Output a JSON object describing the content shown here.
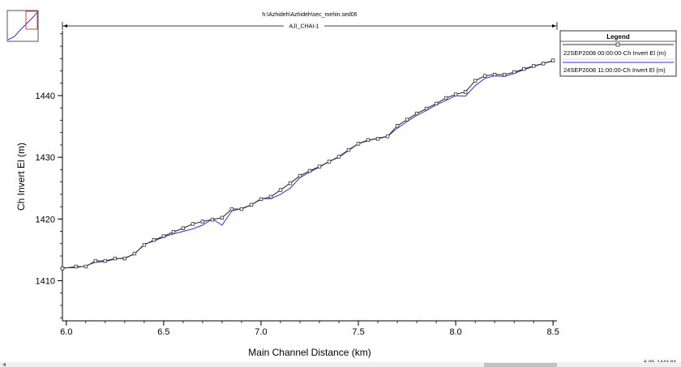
{
  "header": {
    "file_path": "h:\\Azhideh\\Azhideh\\sec_mehin.sed06",
    "reach_name": "AJI_CHAI-1"
  },
  "legend": {
    "title": "Legend",
    "entries": [
      {
        "label": "22SEP2008 00:00:00-Ch Invert El (m)",
        "color": "#333333",
        "marker": "square"
      },
      {
        "label": "24SEP2008 11:00:00-Ch Invert El (m)",
        "color": "#3333cc",
        "marker": "none"
      }
    ]
  },
  "cursor_readout": "6.09, 1444.84",
  "colors": {
    "series1": "#333333",
    "series2": "#3333cc",
    "axis": "#000000"
  },
  "chart_data": {
    "type": "line",
    "title": "",
    "xlabel": "Main Channel Distance (km)",
    "ylabel": "Ch Invert El (m)",
    "xlim": [
      5.98,
      8.52
    ],
    "ylim": [
      1403.5,
      1450.5
    ],
    "xticks": [
      "6.0",
      "6.5",
      "7.0",
      "7.5",
      "8.0",
      "8.5"
    ],
    "xtick_values": [
      6.0,
      6.5,
      7.0,
      7.5,
      8.0,
      8.5
    ],
    "yticks": [
      "1410",
      "1420",
      "1430",
      "1440"
    ],
    "ytick_values": [
      1410,
      1420,
      1430,
      1440
    ],
    "grid": false,
    "legend_position": "top-right",
    "series": [
      {
        "name": "22SEP2008 00:00:00-Ch Invert El (m)",
        "marker": "square",
        "x": [
          5.98,
          6.05,
          6.1,
          6.15,
          6.2,
          6.25,
          6.3,
          6.35,
          6.4,
          6.45,
          6.5,
          6.55,
          6.6,
          6.65,
          6.7,
          6.75,
          6.8,
          6.85,
          6.9,
          6.95,
          7.0,
          7.05,
          7.1,
          7.15,
          7.2,
          7.25,
          7.3,
          7.35,
          7.4,
          7.45,
          7.5,
          7.55,
          7.6,
          7.65,
          7.7,
          7.75,
          7.8,
          7.85,
          7.9,
          7.95,
          8.0,
          8.05,
          8.1,
          8.15,
          8.2,
          8.25,
          8.3,
          8.35,
          8.4,
          8.45,
          8.5
        ],
        "y": [
          1412.0,
          1412.3,
          1412.3,
          1413.2,
          1413.2,
          1413.6,
          1413.6,
          1414.4,
          1415.8,
          1416.6,
          1417.2,
          1417.9,
          1418.5,
          1419.2,
          1419.6,
          1419.9,
          1420.2,
          1421.6,
          1421.6,
          1422.3,
          1423.2,
          1423.6,
          1424.7,
          1425.8,
          1427.0,
          1427.8,
          1428.5,
          1429.3,
          1430.1,
          1431.2,
          1432.2,
          1432.8,
          1433.0,
          1433.4,
          1435.1,
          1436.1,
          1437.1,
          1437.9,
          1438.7,
          1439.6,
          1440.2,
          1440.6,
          1442.4,
          1443.2,
          1443.4,
          1443.4,
          1443.8,
          1444.3,
          1444.8,
          1445.2,
          1445.7
        ]
      },
      {
        "name": "24SEP2008 11:00:00-Ch Invert El (m)",
        "marker": "none",
        "x": [
          5.98,
          6.05,
          6.1,
          6.15,
          6.2,
          6.25,
          6.3,
          6.35,
          6.4,
          6.45,
          6.5,
          6.55,
          6.6,
          6.65,
          6.7,
          6.75,
          6.8,
          6.85,
          6.9,
          6.95,
          7.0,
          7.05,
          7.1,
          7.15,
          7.2,
          7.25,
          7.3,
          7.35,
          7.4,
          7.45,
          7.5,
          7.55,
          7.6,
          7.65,
          7.7,
          7.75,
          7.8,
          7.85,
          7.9,
          7.95,
          8.0,
          8.05,
          8.1,
          8.15,
          8.2,
          8.25,
          8.3,
          8.35,
          8.4,
          8.45,
          8.5
        ],
        "y": [
          1412.1,
          1412.1,
          1412.4,
          1413.0,
          1413.1,
          1413.5,
          1413.7,
          1414.3,
          1415.9,
          1416.4,
          1417.1,
          1417.6,
          1418.0,
          1418.4,
          1419.0,
          1420.0,
          1419.0,
          1421.3,
          1421.7,
          1422.3,
          1423.3,
          1423.3,
          1424.0,
          1425.0,
          1426.7,
          1427.6,
          1428.4,
          1429.3,
          1430.0,
          1431.1,
          1432.2,
          1432.7,
          1433.1,
          1433.4,
          1434.7,
          1435.8,
          1436.8,
          1437.6,
          1438.5,
          1439.2,
          1440.0,
          1439.9,
          1441.6,
          1442.8,
          1443.2,
          1443.1,
          1443.6,
          1444.2,
          1444.7,
          1445.2,
          1445.6
        ]
      }
    ]
  }
}
